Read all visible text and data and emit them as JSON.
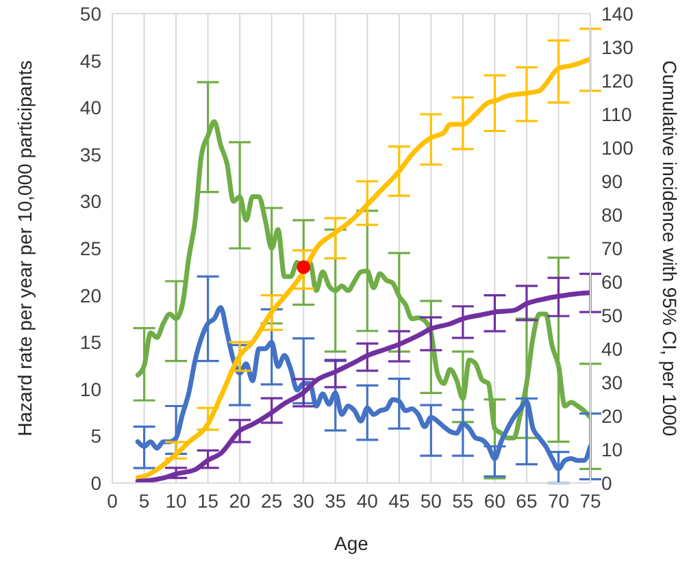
{
  "chart_data": {
    "type": "line",
    "xlabel": "Age",
    "ylabel": "Hazard rate per year per 10,000 participants",
    "y2label": "Cumulative incidence with 95% CI, per 1000",
    "xlim": [
      0,
      75
    ],
    "xticks": [
      0,
      5,
      10,
      15,
      20,
      25,
      30,
      35,
      40,
      45,
      50,
      55,
      60,
      65,
      70,
      75
    ],
    "ylim": [
      0,
      50
    ],
    "yticks": [
      0,
      5,
      10,
      15,
      20,
      25,
      30,
      35,
      40,
      45,
      50
    ],
    "y2lim": [
      0,
      140
    ],
    "y2ticks": [
      0,
      10,
      20,
      30,
      40,
      50,
      60,
      70,
      80,
      90,
      100,
      110,
      120,
      130,
      140
    ],
    "grid": true,
    "legend": false,
    "marker": "none",
    "line_style": "solid",
    "series": [
      {
        "color": "#70ad47",
        "x": [
          4,
          5,
          6,
          7,
          8,
          9,
          10,
          11,
          12,
          13,
          14,
          15,
          16,
          17,
          18,
          19,
          20,
          21,
          22,
          23,
          24,
          25,
          26,
          27,
          28,
          29,
          30,
          31,
          32,
          33,
          34,
          35,
          36,
          37,
          38,
          39,
          40,
          41,
          42,
          43,
          44,
          45,
          46,
          47,
          48,
          49,
          50,
          51,
          52,
          53,
          54,
          55,
          56,
          57,
          58,
          59,
          60,
          61,
          62,
          63,
          64,
          65,
          66,
          67,
          68,
          69,
          70,
          71,
          72,
          73,
          74,
          75
        ],
        "values": [
          11.5,
          12.5,
          16,
          15.5,
          17,
          18,
          17.5,
          19,
          24,
          28,
          35,
          37,
          38.5,
          36,
          34,
          30,
          30.5,
          28,
          30.5,
          30.5,
          28,
          25,
          27,
          22,
          22,
          23.5,
          22.5,
          23.5,
          20.5,
          22.5,
          21,
          20.5,
          21,
          20.5,
          21.5,
          22.5,
          22.6,
          20.8,
          22.3,
          21.6,
          21.3,
          19.9,
          19,
          17.5,
          17.6,
          17.3,
          16,
          11.7,
          10.6,
          12.1,
          11,
          9,
          13.1,
          12.7,
          11,
          10.6,
          5.8,
          5.3,
          4.8,
          4.8,
          7.3,
          10.6,
          15.5,
          18,
          18,
          14.6,
          12.5,
          8.2,
          8.6,
          8.2,
          7.7,
          7.0
        ],
        "errors": [
          null,
          [
            8.8,
            16.5
          ],
          null,
          null,
          null,
          null,
          [
            13,
            21.5
          ],
          null,
          null,
          null,
          null,
          [
            31,
            42.7
          ],
          null,
          null,
          null,
          null,
          [
            25,
            36.3
          ],
          null,
          null,
          null,
          null,
          [
            17,
            29.3
          ],
          null,
          null,
          null,
          null,
          [
            19,
            28
          ],
          null,
          null,
          null,
          null,
          [
            14,
            27
          ],
          null,
          null,
          null,
          null,
          [
            16.2,
            29
          ],
          null,
          null,
          null,
          null,
          [
            14,
            24.5
          ],
          null,
          null,
          null,
          null,
          [
            9.6,
            19.4
          ],
          null,
          null,
          null,
          null,
          [
            6.5,
            14
          ],
          null,
          null,
          null,
          null,
          [
            0.5,
            8.9
          ],
          null,
          null,
          null,
          null,
          [
            4.8,
            17.5
          ],
          null,
          null,
          null,
          null,
          [
            4.4,
            24
          ],
          null,
          null,
          null,
          null,
          [
            1.5,
            12.7
          ]
        ]
      },
      {
        "color": "#4472c4",
        "x": [
          4,
          5,
          6,
          7,
          8,
          9,
          10,
          11,
          12,
          13,
          14,
          15,
          16,
          17,
          18,
          19,
          20,
          21,
          22,
          23,
          24,
          25,
          26,
          27,
          28,
          29,
          30,
          31,
          32,
          33,
          34,
          35,
          36,
          37,
          38,
          39,
          40,
          41,
          42,
          43,
          44,
          45,
          46,
          47,
          48,
          49,
          50,
          51,
          52,
          53,
          54,
          55,
          56,
          57,
          58,
          59,
          60,
          61,
          62,
          63,
          64,
          65,
          66,
          67,
          68,
          69,
          70,
          71,
          72,
          73,
          74,
          75
        ],
        "values": [
          4.4,
          3.9,
          4.4,
          3.7,
          4.4,
          4.4,
          4.8,
          7.3,
          9.6,
          13.1,
          15.5,
          17,
          17.5,
          18.7,
          16,
          13.1,
          11.7,
          12.7,
          10.9,
          14.3,
          14.3,
          15,
          12.4,
          13.6,
          12.1,
          9.9,
          10.6,
          10.6,
          8.2,
          9.5,
          8.4,
          9.6,
          7.3,
          8.2,
          7.7,
          6.6,
          8,
          7.3,
          7.7,
          7.9,
          8.9,
          8.7,
          7.7,
          7.9,
          7.3,
          6,
          7,
          6.6,
          6,
          5.5,
          5.3,
          6.3,
          5.8,
          4.8,
          4.6,
          3.9,
          2.6,
          4.4,
          5.8,
          7,
          7.9,
          8.7,
          5.8,
          4.8,
          3.9,
          2.6,
          1.5,
          2.4,
          2.6,
          2.4,
          2.4,
          3.9
        ],
        "errors": [
          null,
          [
            1.6,
            6
          ],
          null,
          null,
          null,
          null,
          [
            3.1,
            8.2
          ],
          null,
          null,
          null,
          null,
          [
            13,
            22
          ],
          null,
          null,
          null,
          null,
          [
            8.3,
            14.7
          ],
          null,
          null,
          null,
          null,
          [
            10.5,
            18.5
          ],
          null,
          null,
          null,
          null,
          [
            8.5,
            15.4
          ],
          null,
          null,
          null,
          null,
          [
            5.6,
            13
          ],
          null,
          null,
          null,
          null,
          [
            4.6,
            10.4
          ],
          null,
          null,
          null,
          null,
          [
            5.8,
            11.1
          ],
          null,
          null,
          null,
          null,
          [
            2.9,
            8.3
          ],
          null,
          null,
          null,
          null,
          [
            2.9,
            7.8
          ],
          null,
          null,
          null,
          null,
          [
            0.7,
            3.9
          ],
          null,
          null,
          null,
          null,
          [
            2,
            9
          ],
          null,
          null,
          null,
          null,
          [
            0,
            3.3
          ],
          null,
          null,
          null,
          null,
          [
            0.4,
            7.4
          ]
        ]
      },
      {
        "axis": "y2",
        "color": "#ffc000",
        "x": [
          4,
          5,
          7,
          10,
          12,
          15,
          17,
          20,
          22,
          25,
          27,
          30,
          32,
          35,
          37,
          40,
          42,
          45,
          47,
          50,
          52,
          53,
          55,
          57,
          59,
          60,
          62,
          65,
          67,
          68,
          70,
          72,
          75
        ],
        "values": [
          1.6,
          2,
          4,
          8.6,
          12.2,
          17.6,
          25.7,
          38,
          42,
          51,
          55.5,
          63,
          70,
          74.7,
          77.5,
          83,
          87,
          93,
          98,
          103,
          104.5,
          107,
          107,
          110,
          113.5,
          114,
          115.5,
          116.3,
          117,
          119,
          123.7,
          124.5,
          126.5
        ],
        "errors": [
          null,
          null,
          null,
          [
            7.3,
            12.2
          ],
          null,
          [
            15.9,
            22.4
          ],
          null,
          [
            33.5,
            42
          ],
          null,
          [
            45.7,
            56
          ],
          null,
          [
            58,
            69.4
          ],
          null,
          [
            67,
            79
          ],
          null,
          [
            77,
            90
          ],
          null,
          [
            85.7,
            100.4
          ],
          null,
          [
            95,
            110
          ],
          null,
          null,
          [
            99.6,
            115
          ],
          null,
          null,
          [
            105,
            121.6
          ],
          null,
          [
            108,
            124
          ],
          null,
          null,
          [
            113.5,
            132
          ],
          null,
          [
            117,
            135.5
          ]
        ]
      },
      {
        "axis": "y2",
        "color": "#7030a0",
        "x": [
          4,
          5,
          8,
          10,
          13,
          15,
          17,
          20,
          22,
          25,
          27,
          30,
          32,
          35,
          38,
          40,
          43,
          45,
          48,
          50,
          53,
          55,
          58,
          60,
          63,
          65,
          68,
          70,
          73,
          75
        ],
        "values": [
          0.5,
          0.6,
          1.5,
          2.7,
          4,
          6.8,
          8.8,
          15.6,
          17.5,
          21,
          23.7,
          27,
          30.6,
          33.2,
          36,
          38,
          40,
          41.4,
          44,
          46,
          47.5,
          49,
          50.2,
          51,
          51.5,
          53.5,
          55,
          55.7,
          56.5,
          56.8
        ],
        "errors": [
          null,
          null,
          null,
          [
            1.5,
            4.5
          ],
          null,
          [
            4.5,
            9.7
          ],
          null,
          [
            12.2,
            18.8
          ],
          null,
          [
            18,
            25.3
          ],
          null,
          [
            22.9,
            31
          ],
          null,
          [
            28.6,
            36.7
          ],
          null,
          [
            33.5,
            41.6
          ],
          null,
          [
            36.3,
            45.3
          ],
          null,
          [
            39.6,
            49.4
          ],
          null,
          [
            43.3,
            52.7
          ],
          null,
          [
            45.3,
            56
          ],
          null,
          [
            48.6,
            58.8
          ],
          null,
          [
            49.8,
            61.2
          ],
          null,
          [
            51,
            62.4
          ]
        ]
      },
      {
        "type": "scatter",
        "color": "#ff0000",
        "marker": "circle",
        "x": [
          30
        ],
        "values": [
          23
        ]
      }
    ]
  }
}
